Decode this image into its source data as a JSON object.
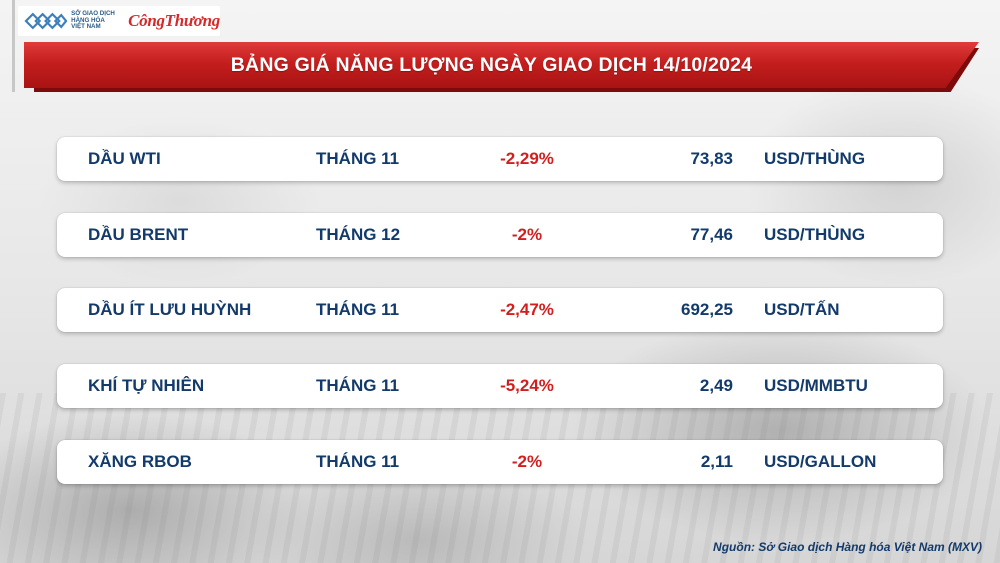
{
  "header": {
    "exchange_logo_text": [
      "SỞ GIAO DỊCH",
      "HÀNG HÓA",
      "VIỆT NAM"
    ],
    "publisher_logo": "CôngThương",
    "title": "BẢNG GIÁ NĂNG LƯỢNG NGÀY GIAO DỊCH 14/10/2024"
  },
  "rows": [
    {
      "name": "DẦU WTI",
      "month": "THÁNG 11",
      "change": "-2,29%",
      "price": "73,83",
      "unit": "USD/THÙNG"
    },
    {
      "name": "DẦU BRENT",
      "month": "THÁNG 12",
      "change": "-2%",
      "price": "77,46",
      "unit": "USD/THÙNG"
    },
    {
      "name": "DẦU ÍT LƯU HUỲNH",
      "month": "THÁNG 11",
      "change": "-2,47%",
      "price": "692,25",
      "unit": "USD/TẤN"
    },
    {
      "name": "KHÍ TỰ NHIÊN",
      "month": "THÁNG 11",
      "change": "-5,24%",
      "price": "2,49",
      "unit": "USD/MMBTU"
    },
    {
      "name": "XĂNG RBOB",
      "month": "THÁNG 11",
      "change": "-2%",
      "price": "2,11",
      "unit": "USD/GALLON"
    }
  ],
  "source": "Nguồn: Sở Giao dịch Hàng hóa Việt Nam (MXV)",
  "colors": {
    "banner_red": "#c41e1e",
    "text_navy": "#123a6b",
    "negative_red": "#d11f1f"
  }
}
